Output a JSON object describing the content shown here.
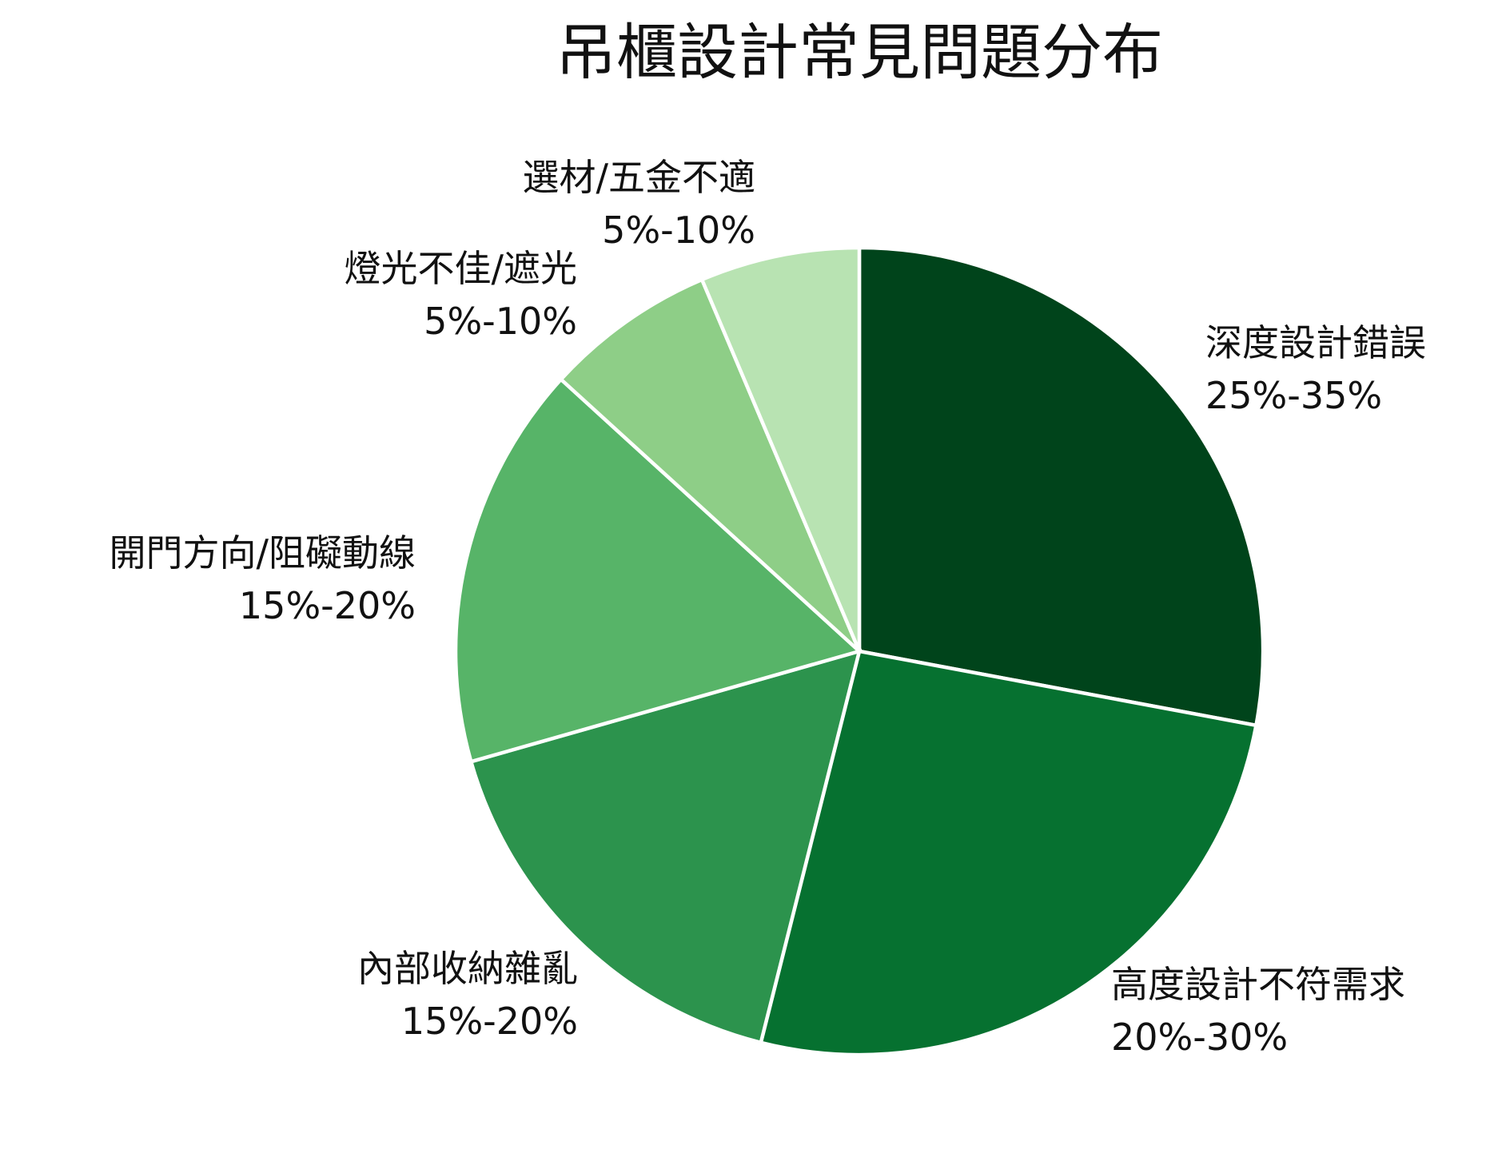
{
  "chart_data": {
    "type": "pie",
    "title": "吊櫃設計常見問題分布",
    "start": "12 o'clock",
    "direction": "clockwise",
    "slices": [
      {
        "label": "深度設計錯誤",
        "range_text": "25%-35%",
        "value": 28.5,
        "color": "#00441b"
      },
      {
        "label": "高度設計不符需求",
        "range_text": "20%-30%",
        "value": 26.5,
        "color": "#067130"
      },
      {
        "label": "內部收納雜亂",
        "range_text": "15%-20%",
        "value": 17.0,
        "color": "#2c934d"
      },
      {
        "label": "開門方向/阻礙動線",
        "range_text": "15%-20%",
        "value": 16.5,
        "color": "#57b468"
      },
      {
        "label": "燈光不佳/遮光",
        "range_text": "5%-10%",
        "value": 7.0,
        "color": "#8ece87"
      },
      {
        "label": "選材/五金不適",
        "range_text": "5%-10%",
        "value": 6.5,
        "color": "#b8e3b2"
      }
    ]
  }
}
